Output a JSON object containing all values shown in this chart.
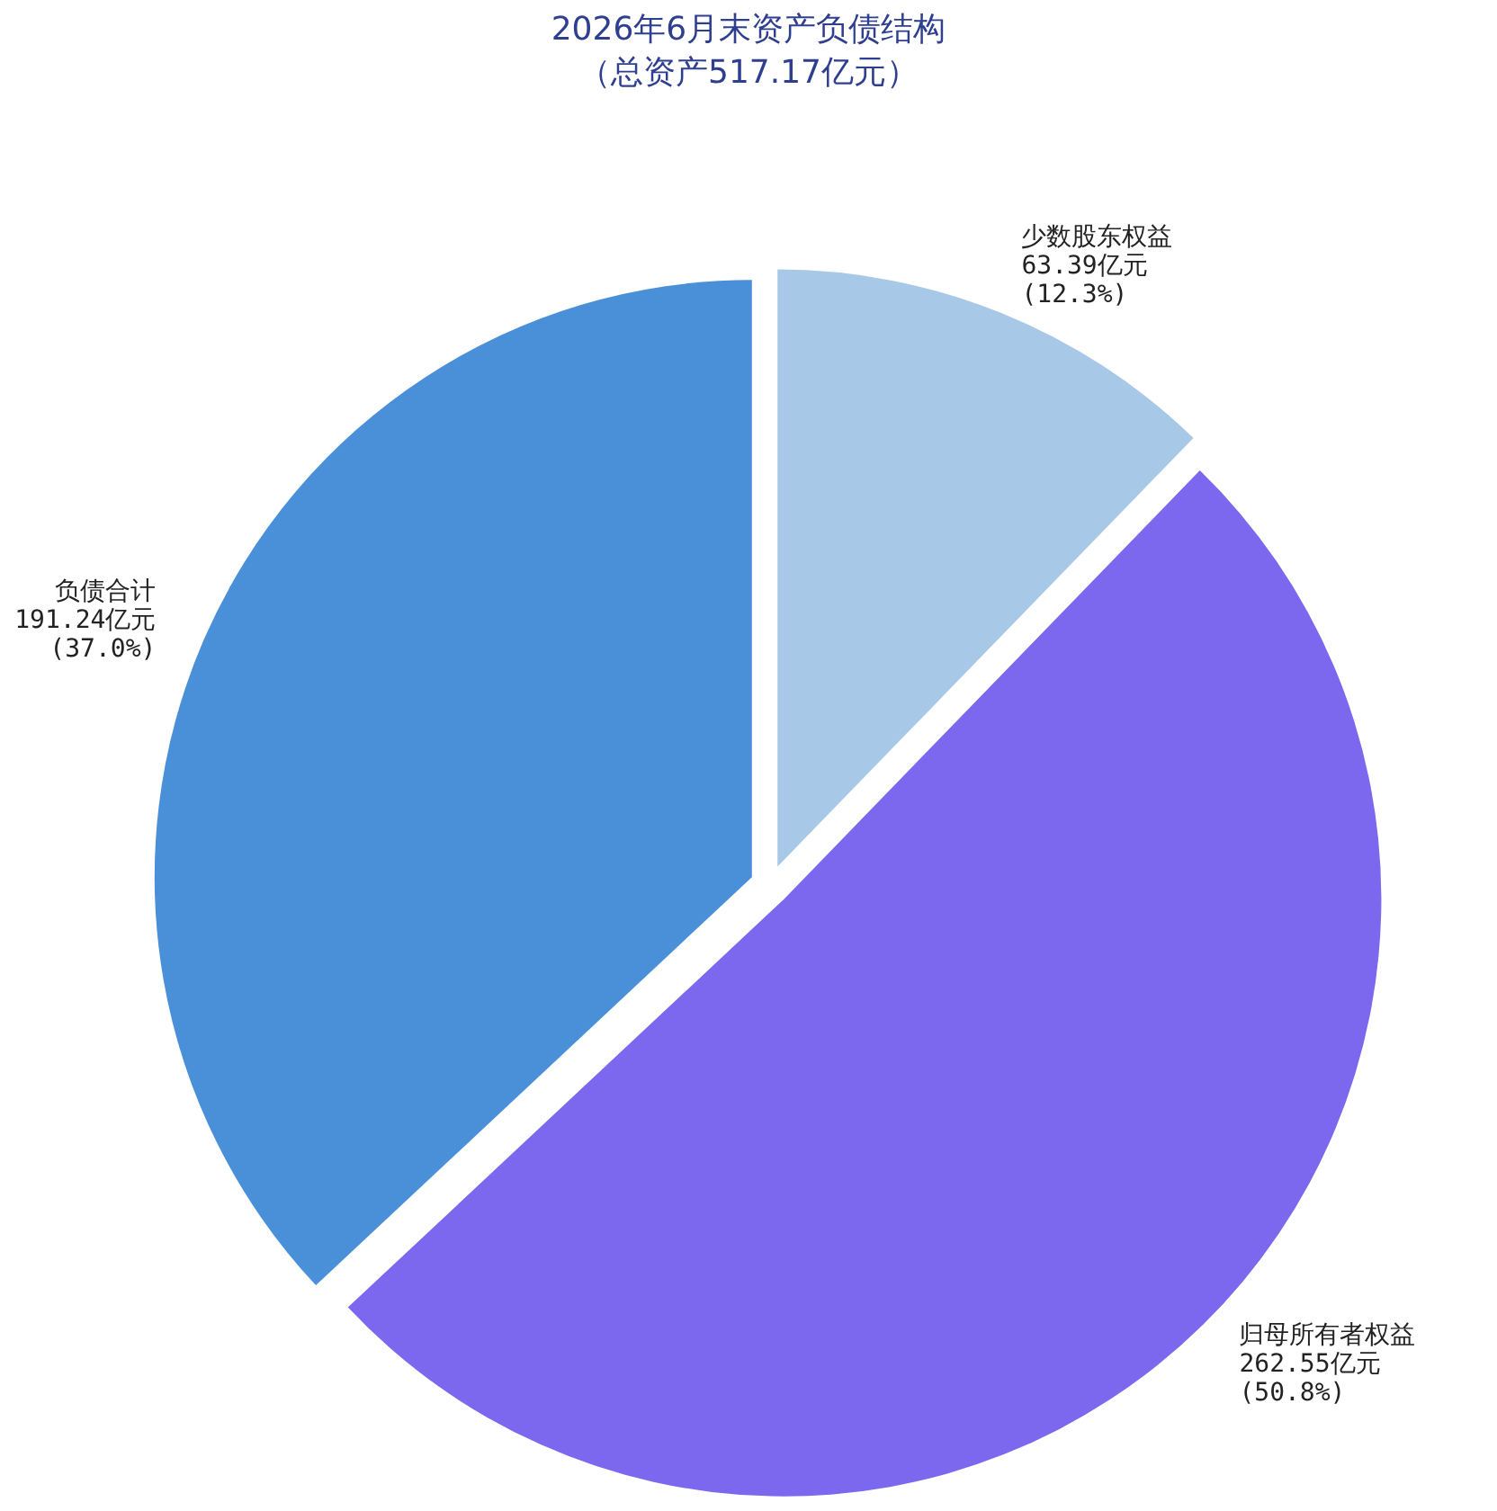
{
  "chart_data": {
    "type": "pie",
    "title": "2026年6月末资产负债结构",
    "subtitle": "（总资产517.17亿元）",
    "categories": [
      "少数股东权益",
      "归母所有者权益",
      "负债合计"
    ],
    "values": [
      63.39,
      262.55,
      191.24
    ],
    "colors": [
      "#a8c8e8",
      "#7b68ee",
      "#4a90d9"
    ],
    "value_labels": [
      "63.39亿元 (12.3%)",
      "262.55亿元 (50.8%)",
      "191.24亿元 (37.0%)"
    ]
  }
}
